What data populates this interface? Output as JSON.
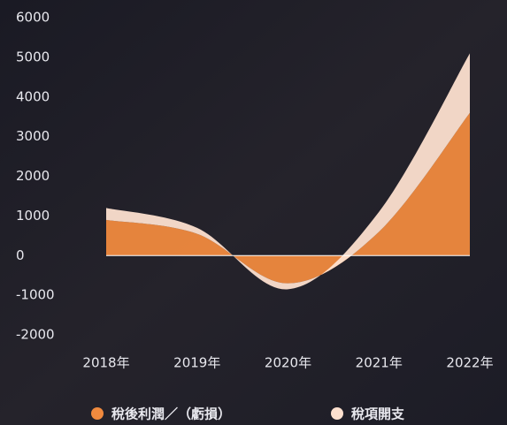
{
  "chart_data": {
    "type": "area",
    "stacked": true,
    "categories": [
      "2018年",
      "2019年",
      "2020年",
      "2021年",
      "2022年"
    ],
    "series": [
      {
        "name": "稅後利潤／（虧損）",
        "color": "#f08a3e",
        "values": [
          900,
          550,
          -700,
          600,
          3600
        ]
      },
      {
        "name": "稅項開支",
        "color": "#fde0cf",
        "values": [
          300,
          150,
          -150,
          500,
          1500
        ]
      }
    ],
    "ylim": [
      -2000,
      6000
    ],
    "yticks": [
      -2000,
      -1000,
      0,
      1000,
      2000,
      3000,
      4000,
      5000,
      6000
    ],
    "legend": "bottom"
  }
}
